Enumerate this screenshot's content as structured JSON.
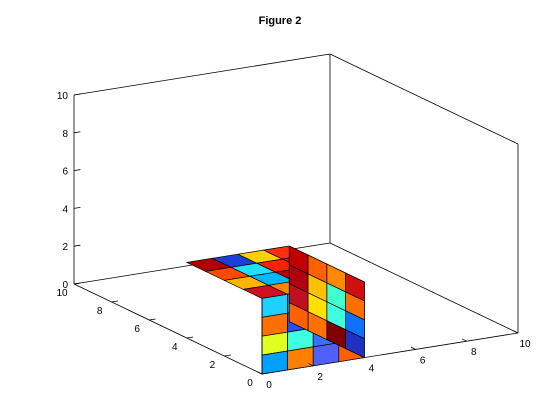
{
  "chart_data": {
    "type": "3d-voxel",
    "title": "Figure 2",
    "xlim": [
      0,
      10
    ],
    "ylim": [
      0,
      10
    ],
    "zlim": [
      0,
      10
    ],
    "x_ticks": [
      "0",
      "2",
      "4",
      "6",
      "8",
      "10"
    ],
    "y_ticks": [
      "0",
      "2",
      "4",
      "6",
      "8",
      "10"
    ],
    "z_ticks": [
      "0",
      "2",
      "4",
      "6",
      "8",
      "10"
    ],
    "grid": false,
    "box": true,
    "colormap": "jet",
    "voxel_extent": {
      "x": [
        0,
        4
      ],
      "y": [
        0,
        4
      ],
      "z": [
        0,
        4
      ]
    },
    "voxel_size": 1,
    "top_face_colors": [
      [
        "#b00000",
        "#1c3fd8",
        "#ffd000",
        "#ff3010"
      ],
      [
        "#ff4a00",
        "#20e0ff",
        "#ff2000",
        "#d01010"
      ],
      [
        "#ffb400",
        "#00b8ff",
        "#c00000",
        "#ff6000"
      ],
      [
        "#d01020",
        "#ff8800",
        "#ffa000",
        "#b00010"
      ]
    ],
    "front_face_colors": [
      [
        "#20d0ff",
        "#00a0ff",
        "#9cff70",
        "#ff5000"
      ],
      [
        "#ff7000",
        "#2050ff",
        "#50ffb0",
        "#1030c0"
      ],
      [
        "#e0ff20",
        "#40ffe0",
        "#3a70ff",
        "#ff8000"
      ],
      [
        "#00a0ff",
        "#ff8000",
        "#5060ff",
        "#ff6000"
      ]
    ],
    "right_face_colors": [
      [
        "#d01010",
        "#ff8800",
        "#ff6000",
        "#c00000"
      ],
      [
        "#ff7000",
        "#40ffd0",
        "#ffc000",
        "#b00010"
      ],
      [
        "#1070ff",
        "#40ffe0",
        "#ffe000",
        "#c01020"
      ],
      [
        "#2030c0",
        "#800000",
        "#ff7000",
        "#ff6000"
      ]
    ]
  }
}
